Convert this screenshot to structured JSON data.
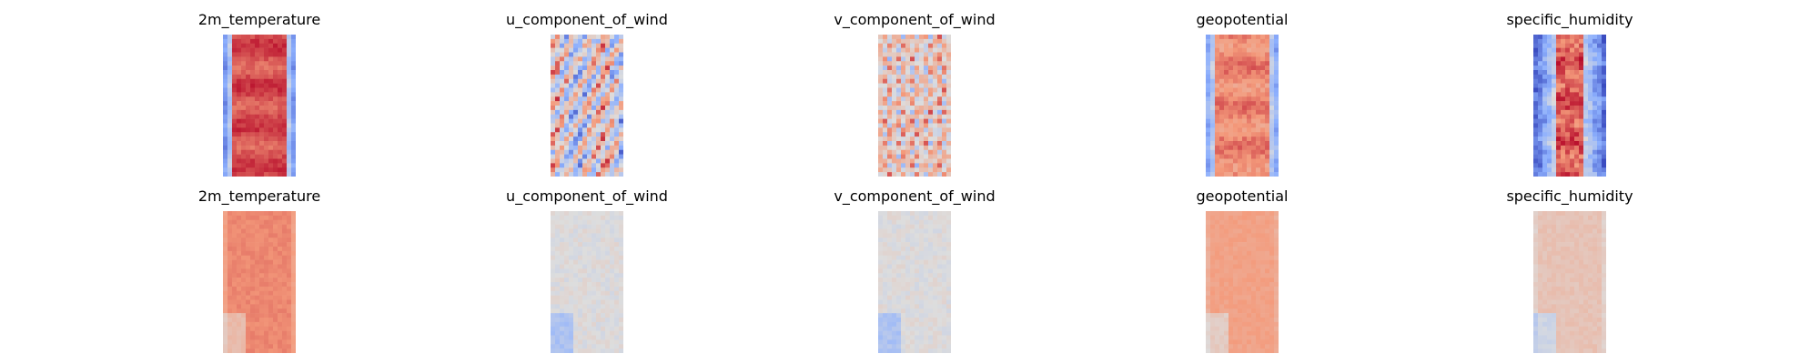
{
  "chart_data": {
    "type": "heatmap",
    "colormap": "coolwarm",
    "grid": false,
    "axes": "off",
    "rows": [
      {
        "panels": [
          {
            "title": "2m_temperature",
            "pattern": "banded",
            "lowEdge": 0.12,
            "core": 0.88,
            "noise": 0.08
          },
          {
            "title": "u_component_of_wind",
            "pattern": "streaky",
            "lowEdge": 0.3,
            "core": 0.45,
            "noise": 0.3
          },
          {
            "title": "v_component_of_wind",
            "pattern": "mottled",
            "lowEdge": 0.6,
            "core": 0.62,
            "noise": 0.25
          },
          {
            "title": "geopotential",
            "pattern": "banded",
            "lowEdge": 0.2,
            "core": 0.78,
            "noise": 0.1
          },
          {
            "title": "specific_humidity",
            "pattern": "core",
            "lowEdge": 0.05,
            "core": 0.85,
            "noise": 0.18
          }
        ]
      },
      {
        "panels": [
          {
            "title": "2m_temperature",
            "pattern": "flat",
            "lowEdge": 0.72,
            "core": 0.78,
            "noise": 0.04
          },
          {
            "title": "u_component_of_wind",
            "pattern": "flat",
            "lowEdge": 0.5,
            "core": 0.5,
            "noise": 0.08
          },
          {
            "title": "v_component_of_wind",
            "pattern": "flat",
            "lowEdge": 0.5,
            "core": 0.5,
            "noise": 0.08
          },
          {
            "title": "geopotential",
            "pattern": "flat",
            "lowEdge": 0.68,
            "core": 0.72,
            "noise": 0.05
          },
          {
            "title": "specific_humidity",
            "pattern": "flat",
            "lowEdge": 0.55,
            "core": 0.6,
            "noise": 0.05
          }
        ]
      }
    ]
  }
}
